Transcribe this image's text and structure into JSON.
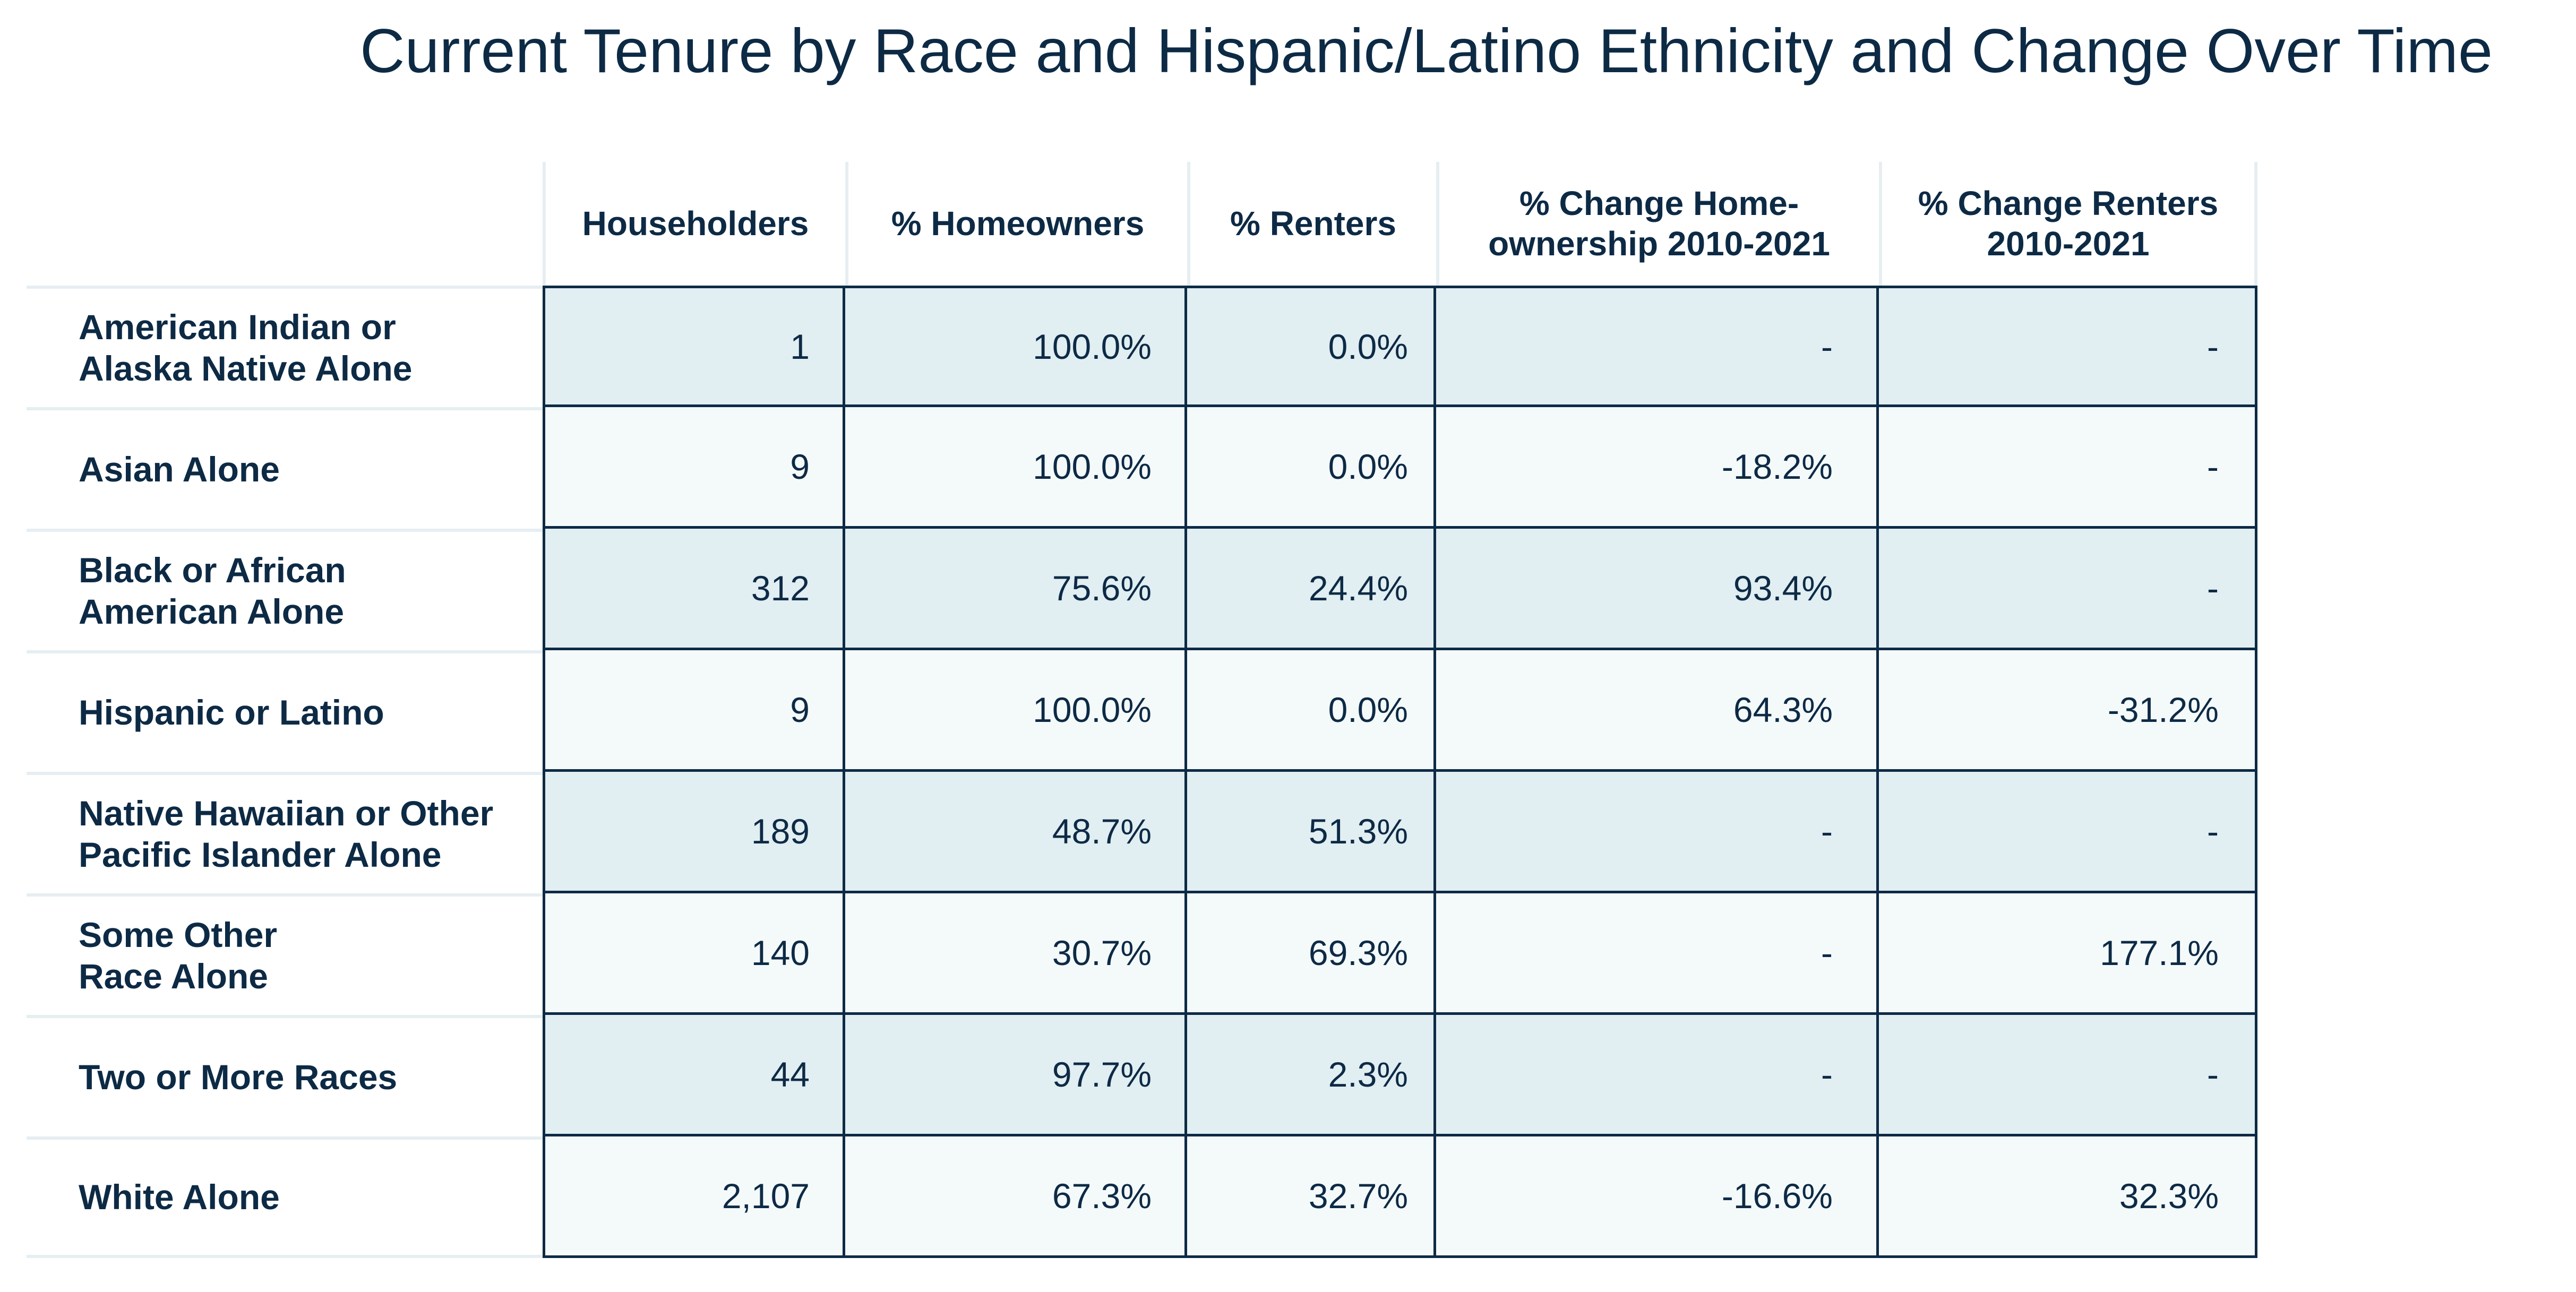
{
  "title": "Current Tenure by Race and Hispanic/Latino Ethnicity and Change Over Time",
  "colors": {
    "text": "#0d2a45",
    "grid": "#0d2a45",
    "row_shade_dark": "#e1eef2",
    "row_shade_light": "#f4f9fa",
    "header_divider": "#e6eef2"
  },
  "chart_data": {
    "type": "table",
    "title": "Current Tenure by Race and Hispanic/Latino Ethnicity and Change Over Time",
    "columns": [
      "Householders",
      "% Homeowners",
      "% Renters",
      "% Change Home-\nownership 2010-2021",
      "% Change Renters\n2010-2021"
    ],
    "rows": [
      {
        "label": "American Indian or\nAlaska Native Alone",
        "values": [
          "1",
          "100.0%",
          "0.0%",
          "-",
          "-"
        ]
      },
      {
        "label": "Asian Alone",
        "values": [
          "9",
          "100.0%",
          "0.0%",
          "-18.2%",
          "-"
        ]
      },
      {
        "label": "Black or African\nAmerican Alone",
        "values": [
          "312",
          "75.6%",
          "24.4%",
          "93.4%",
          "-"
        ]
      },
      {
        "label": "Hispanic or Latino",
        "values": [
          "9",
          "100.0%",
          "0.0%",
          "64.3%",
          "-31.2%"
        ]
      },
      {
        "label": "Native Hawaiian or Other\n Pacific Islander Alone",
        "values": [
          "189",
          "48.7%",
          "51.3%",
          "-",
          "-"
        ]
      },
      {
        "label": "Some Other\nRace Alone",
        "values": [
          "140",
          "30.7%",
          "69.3%",
          "-",
          "177.1%"
        ]
      },
      {
        "label": "Two or More Races",
        "values": [
          "44",
          "97.7%",
          "2.3%",
          "-",
          "-"
        ]
      },
      {
        "label": "White Alone",
        "values": [
          "2,107",
          "67.3%",
          "32.7%",
          "-16.6%",
          "32.3%"
        ]
      }
    ]
  }
}
